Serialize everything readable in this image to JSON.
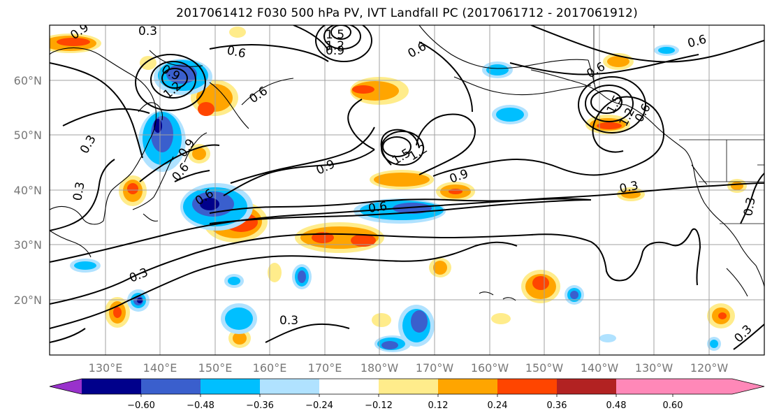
{
  "title": "2017061412 F030 500 hPa PV, IVT Landfall PC (2017061712 - 2017061912)",
  "lat_labels": [
    "60°N",
    "50°N",
    "40°N",
    "30°N",
    "20°N"
  ],
  "lon_labels": [
    "130°E",
    "140°E",
    "150°E",
    "160°E",
    "170°E",
    "180°W",
    "170°W",
    "160°W",
    "150°W",
    "140°W",
    "130°W",
    "120°W"
  ],
  "colorbar": {
    "ticks": [
      "−0.60",
      "−0.48",
      "−0.36",
      "−0.24",
      "−0.12",
      "0.12",
      "0.24",
      "0.36",
      "0.48",
      "0.60"
    ],
    "colors": [
      "#9932cc",
      "#00008b",
      "#3a5fcd",
      "#00bfff",
      "#b0e2ff",
      "#ffffff",
      "#ffec8b",
      "#ffa500",
      "#ff4500",
      "#b22222",
      "#ff88b8"
    ]
  },
  "contour_labels": [
    "0.9",
    "0.3",
    "1.5",
    "1.2",
    "0.9",
    "0.6",
    "0.9",
    "1.2",
    "0.6",
    "0.6",
    "0.9",
    "0.6",
    "0.9",
    "0.6",
    "0.6",
    "0.3",
    "0.3",
    "1.5",
    "1.2",
    "0.9",
    "0.6",
    "0.6",
    "0.6",
    "1.5",
    "1.2",
    "0.3",
    "0.3",
    "0.3",
    "0.3",
    "0.3"
  ]
}
